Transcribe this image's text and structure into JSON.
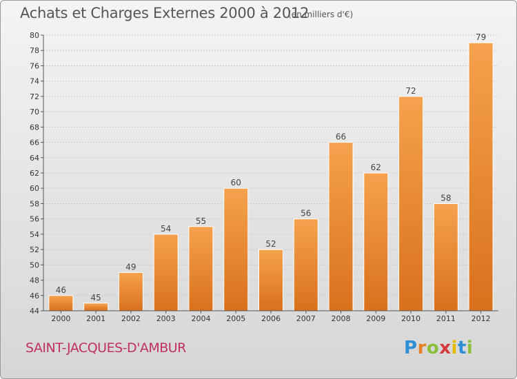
{
  "title": "Achats et Charges Externes 2000 à 2012",
  "subtitle": "(en milliers d'€)",
  "location": "SAINT-JACQUES-D'AMBUR",
  "brand": {
    "letters": [
      {
        "ch": "P",
        "color": "#2f8fd6"
      },
      {
        "ch": "r",
        "color": "#e67e22"
      },
      {
        "ch": "o",
        "color": "#8bbf3a"
      },
      {
        "ch": "x",
        "color": "#d63a3a"
      },
      {
        "ch": "i",
        "color": "#e6b800"
      },
      {
        "ch": "t",
        "color": "#2f8fd6"
      },
      {
        "ch": "i",
        "color": "#8bbf3a"
      }
    ]
  },
  "colors": {
    "bar_top": "#f6a24e",
    "bar_bottom": "#d9701c",
    "grid": "#c8c8c8",
    "title": "#555555",
    "location": "#c0305e"
  },
  "chart_data": {
    "type": "bar",
    "title": "Achats et Charges Externes 2000 à 2012",
    "subtitle": "(en milliers d'€)",
    "categories": [
      "2000",
      "2001",
      "2002",
      "2003",
      "2004",
      "2005",
      "2006",
      "2007",
      "2008",
      "2009",
      "2010",
      "2011",
      "2012"
    ],
    "values": [
      46,
      45,
      49,
      54,
      55,
      60,
      52,
      56,
      66,
      62,
      72,
      58,
      79
    ],
    "ylim": [
      44,
      80
    ],
    "ytick_step": 2,
    "xlabel": "",
    "ylabel": "",
    "grid": true,
    "data_labels": true
  }
}
